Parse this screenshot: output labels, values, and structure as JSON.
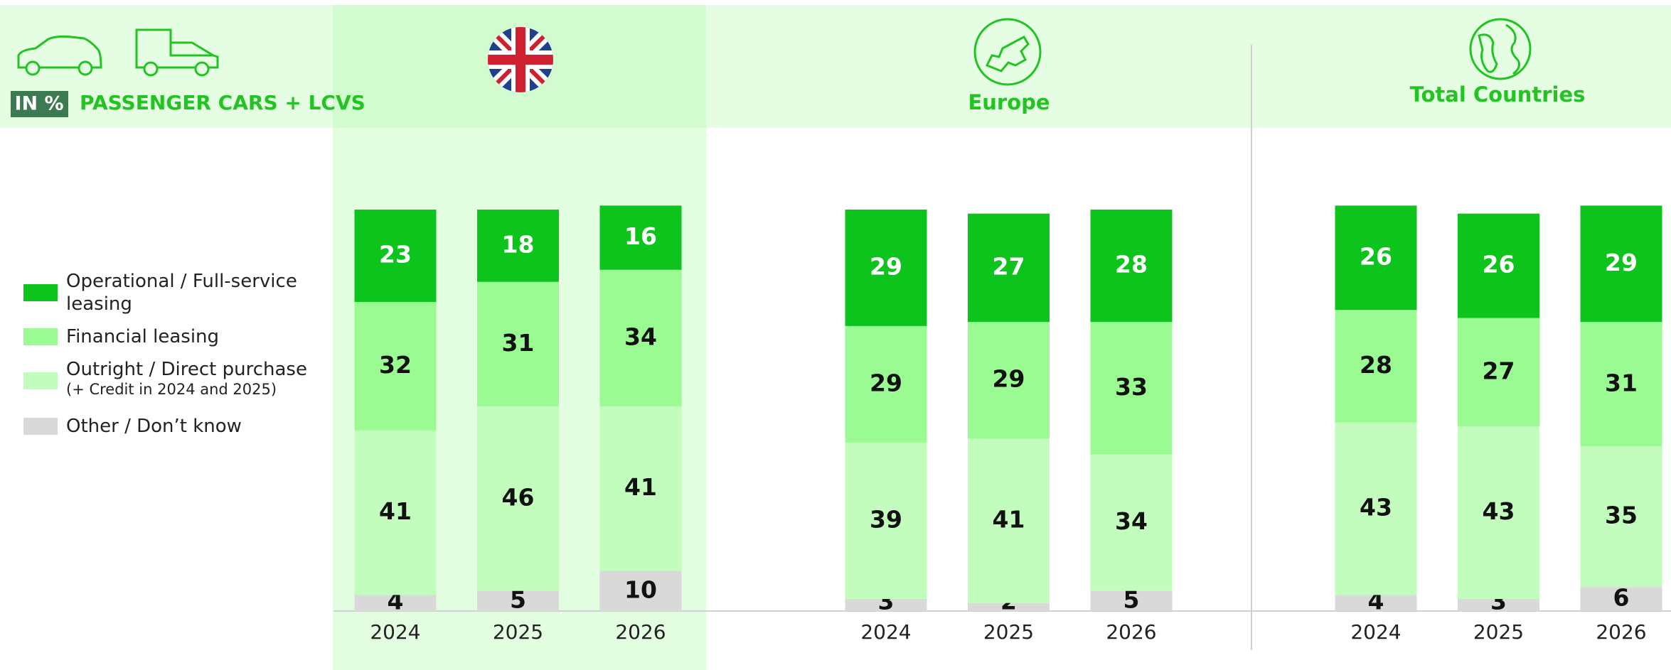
{
  "header": {
    "unit": "IN %",
    "label": "PASSENGER CARS + LCVS"
  },
  "legend_note": "(+ Credit in 2024 and 2025)",
  "chart_data": [
    {
      "type": "bar",
      "stacked": true,
      "categories": [
        "2024",
        "2025",
        "2026"
      ],
      "ylim": [
        0,
        100
      ],
      "series": [
        {
          "name": "Operational / Full-service leasing",
          "color": "#0cc41c",
          "label_color": "#ffffff",
          "values": [
            23,
            18,
            16
          ]
        },
        {
          "name": "Financial leasing",
          "color": "#99fb91",
          "label_color": "#111111",
          "values": [
            32,
            31,
            34
          ]
        },
        {
          "name": "Outright / Direct purchase",
          "color": "#c3fdbd",
          "label_color": "#111111",
          "values": [
            41,
            46,
            41
          ]
        },
        {
          "name": "Other / Don’t know",
          "color": "#d9d9d9",
          "label_color": "#111111",
          "values": [
            4,
            5,
            10
          ]
        }
      ]
    },
    {
      "type": "bar",
      "stacked": true,
      "title": "Europe",
      "categories": [
        "2024",
        "2025",
        "2026"
      ],
      "ylim": [
        0,
        100
      ],
      "series": [
        {
          "name": "Operational / Full-service leasing",
          "color": "#0cc41c",
          "label_color": "#ffffff",
          "values": [
            29,
            27,
            28
          ]
        },
        {
          "name": "Financial leasing",
          "color": "#99fb91",
          "label_color": "#111111",
          "values": [
            29,
            29,
            33
          ]
        },
        {
          "name": "Outright / Direct purchase",
          "color": "#c3fdbd",
          "label_color": "#111111",
          "values": [
            39,
            41,
            34
          ]
        },
        {
          "name": "Other / Don’t know",
          "color": "#d9d9d9",
          "label_color": "#111111",
          "values": [
            3,
            2,
            5
          ]
        }
      ]
    },
    {
      "type": "bar",
      "stacked": true,
      "title": "Total Countries",
      "categories": [
        "2024",
        "2025",
        "2026"
      ],
      "ylim": [
        0,
        100
      ],
      "series": [
        {
          "name": "Operational / Full-service leasing",
          "color": "#0cc41c",
          "label_color": "#ffffff",
          "values": [
            26,
            26,
            29
          ]
        },
        {
          "name": "Financial leasing",
          "color": "#99fb91",
          "label_color": "#111111",
          "values": [
            28,
            27,
            31
          ]
        },
        {
          "name": "Outright / Direct purchase",
          "color": "#c3fdbd",
          "label_color": "#111111",
          "values": [
            43,
            43,
            35
          ]
        },
        {
          "name": "Other / Don’t know",
          "color": "#d9d9d9",
          "label_color": "#111111",
          "values": [
            4,
            3,
            6
          ]
        }
      ]
    }
  ]
}
